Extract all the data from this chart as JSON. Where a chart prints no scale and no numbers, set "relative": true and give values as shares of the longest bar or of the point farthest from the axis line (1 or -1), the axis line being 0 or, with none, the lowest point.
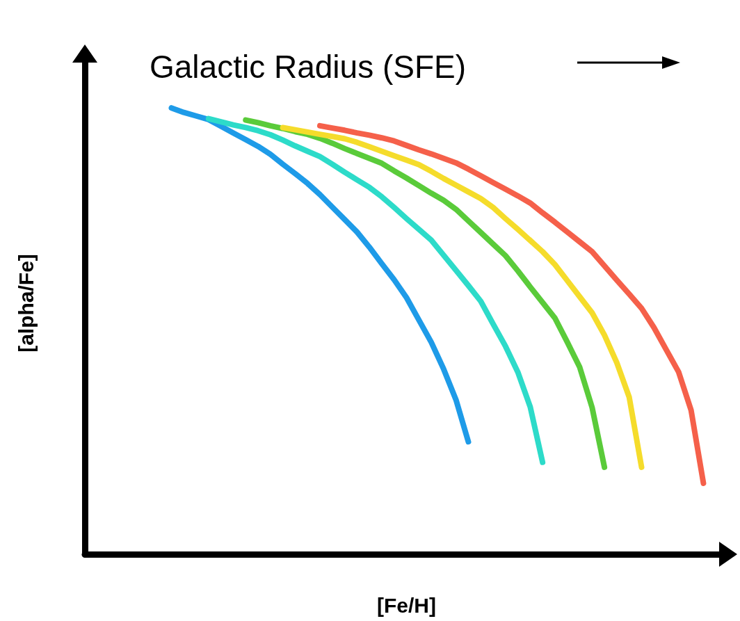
{
  "chart_data": {
    "type": "line",
    "relative": true,
    "title": "Galactic Radius (SFE)",
    "xlabel": "[Fe/H]",
    "ylabel": "[alpha/Fe]",
    "grid": false,
    "marker": "none",
    "line_style": "solid",
    "categories": [
      null,
      null,
      null,
      null,
      null,
      null,
      null,
      null,
      null,
      null,
      null,
      null,
      null,
      null,
      null,
      null,
      null,
      null,
      null,
      null,
      null,
      null,
      null,
      null,
      null,
      null,
      null,
      null,
      null,
      null,
      null,
      null,
      null,
      null,
      null,
      null,
      null,
      null,
      null,
      null,
      null,
      null,
      null,
      null,
      null,
      null,
      null,
      null,
      null,
      null,
      null,
      null,
      null
    ],
    "series": [
      {
        "color": "#1e9be8",
        "values": [
          null,
          null,
          null,
          null,
          null,
          null,
          null,
          1.0,
          0.99,
          0.982,
          0.974,
          0.959,
          0.944,
          0.929,
          0.914,
          0.896,
          0.874,
          0.853,
          0.831,
          0.806,
          0.778,
          0.75,
          0.722,
          0.688,
          0.651,
          0.615,
          0.575,
          0.525,
          0.475,
          0.415,
          0.346,
          0.252,
          null,
          null,
          null,
          null,
          null,
          null,
          null,
          null,
          null,
          null,
          null,
          null,
          null,
          null,
          null,
          null,
          null,
          null,
          null,
          null,
          null
        ]
      },
      {
        "color": "#2ddbc9",
        "values": [
          null,
          null,
          null,
          null,
          null,
          null,
          null,
          null,
          null,
          null,
          0.976,
          0.969,
          0.962,
          0.956,
          0.949,
          0.94,
          0.928,
          0.915,
          0.903,
          0.891,
          0.874,
          0.856,
          0.839,
          0.822,
          0.801,
          0.777,
          0.752,
          0.728,
          0.704,
          0.67,
          0.636,
          0.602,
          0.567,
          0.516,
          0.466,
          0.408,
          0.33,
          0.206,
          null,
          null,
          null,
          null,
          null,
          null,
          null,
          null,
          null,
          null,
          null,
          null,
          null,
          null,
          null
        ]
      },
      {
        "color": "#5acb3a",
        "values": [
          null,
          null,
          null,
          null,
          null,
          null,
          null,
          null,
          null,
          null,
          null,
          null,
          null,
          0.973,
          0.967,
          0.96,
          0.954,
          0.947,
          0.941,
          0.932,
          0.921,
          0.909,
          0.898,
          0.887,
          0.876,
          0.859,
          0.843,
          0.826,
          0.809,
          0.793,
          0.773,
          0.747,
          0.721,
          0.695,
          0.669,
          0.635,
          0.599,
          0.564,
          0.529,
          0.475,
          0.419,
          0.329,
          0.195,
          null,
          null,
          null,
          null,
          null,
          null,
          null,
          null,
          null,
          null
        ]
      },
      {
        "color": "#f5dc2b",
        "values": [
          null,
          null,
          null,
          null,
          null,
          null,
          null,
          null,
          null,
          null,
          null,
          null,
          null,
          null,
          null,
          null,
          0.956,
          0.951,
          0.946,
          0.941,
          0.936,
          0.931,
          0.923,
          0.913,
          0.903,
          0.893,
          0.883,
          0.873,
          0.858,
          0.842,
          0.827,
          0.812,
          0.797,
          0.777,
          0.752,
          0.728,
          0.703,
          0.678,
          0.649,
          0.613,
          0.577,
          0.541,
          0.491,
          0.429,
          0.352,
          0.195,
          null,
          null,
          null,
          null,
          null,
          null,
          null
        ]
      },
      {
        "color": "#f5604a",
        "values": [
          null,
          null,
          null,
          null,
          null,
          null,
          null,
          null,
          null,
          null,
          null,
          null,
          null,
          null,
          null,
          null,
          null,
          null,
          null,
          0.96,
          0.955,
          0.95,
          0.944,
          0.939,
          0.933,
          0.926,
          0.916,
          0.906,
          0.897,
          0.887,
          0.877,
          0.863,
          0.848,
          0.833,
          0.818,
          0.803,
          0.787,
          0.765,
          0.744,
          0.722,
          0.7,
          0.678,
          0.646,
          0.614,
          0.583,
          0.551,
          0.508,
          0.458,
          0.408,
          0.323,
          0.159,
          null,
          null
        ]
      }
    ]
  }
}
